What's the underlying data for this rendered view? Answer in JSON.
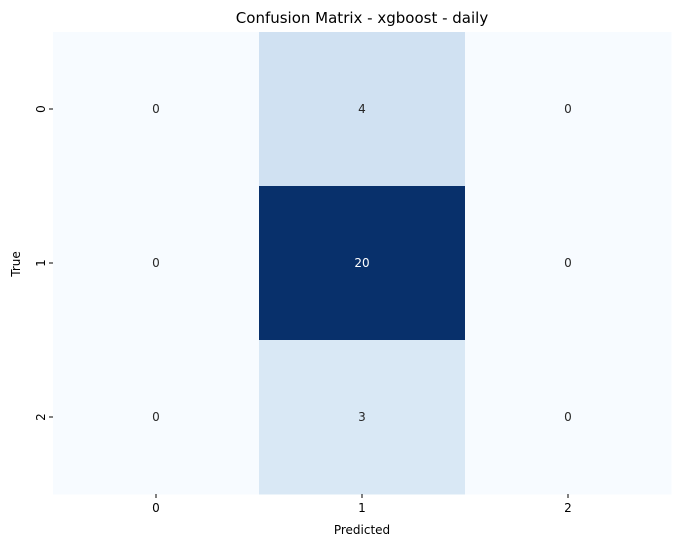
{
  "chart_data": {
    "type": "heatmap",
    "title": "Confusion Matrix - xgboost - daily",
    "xlabel": "Predicted",
    "ylabel": "True",
    "x_categories": [
      "0",
      "1",
      "2"
    ],
    "y_categories": [
      "0",
      "1",
      "2"
    ],
    "values": [
      [
        0,
        4,
        0
      ],
      [
        0,
        20,
        0
      ],
      [
        0,
        3,
        0
      ]
    ],
    "colormap": "Blues",
    "colorbar": false,
    "colors": {
      "low": "#f7fbff",
      "high": "#08306b"
    }
  }
}
